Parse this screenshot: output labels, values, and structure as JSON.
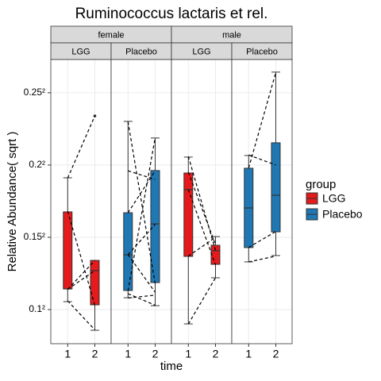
{
  "chart_data": {
    "type": "box",
    "title": "Ruminococcus lactaris et rel.",
    "x_label": "time",
    "y_label": "Relative Abundance( sqrt )",
    "legend_title": "group",
    "categories": [
      "1",
      "2"
    ],
    "series": [
      {
        "name": "LGG",
        "color": "#e41a1c"
      },
      {
        "name": "Placebo",
        "color": "#1f78b4"
      }
    ],
    "ylim": [
      0.0764,
      0.273
    ],
    "yticks": [
      {
        "value": 0.1,
        "label": "0.1²"
      },
      {
        "value": 0.15,
        "label": "0.15²"
      },
      {
        "value": 0.2,
        "label": "0.2²"
      },
      {
        "value": 0.25,
        "label": "0.25²"
      }
    ],
    "grid": true,
    "facets": [
      {
        "name": "female",
        "panels": [
          {
            "name": "LGG",
            "boxes": [
              {
                "whisker_low": 0.1055,
                "q1": 0.1143,
                "median": 0.1143,
                "q3": 0.1676,
                "whisker_high": 0.1912,
                "outliers": []
              },
              {
                "whisker_low": 0.0857,
                "q1": 0.1033,
                "median": 0.127,
                "q3": 0.134,
                "whisker_high": 0.134,
                "outliers": [
                  0.234
                ]
              }
            ],
            "pairs": [
              [
                0.191,
                0.234
              ],
              [
                0.168,
                0.103
              ],
              [
                0.114,
                0.134
              ],
              [
                0.106,
                0.086
              ],
              [
                0.114,
                0.127
              ]
            ]
          },
          {
            "name": "Placebo",
            "boxes": [
              {
                "whisker_low": 0.1082,
                "q1": 0.1132,
                "median": 0.1379,
                "q3": 0.167,
                "whisker_high": 0.2302,
                "outliers": []
              },
              {
                "whisker_low": 0.1027,
                "q1": 0.1187,
                "median": 0.1593,
                "q3": 0.1962,
                "whisker_high": 0.2187,
                "outliers": []
              }
            ],
            "pairs": [
              [
                0.23,
                0.118
              ],
              [
                0.196,
                0.19
              ],
              [
                0.167,
                0.196
              ],
              [
                0.138,
                0.159
              ],
              [
                0.138,
                0.112
              ],
              [
                0.113,
                0.219
              ],
              [
                0.111,
                0.103
              ],
              [
                0.108,
                0.11
              ]
            ]
          }
        ]
      },
      {
        "name": "male",
        "panels": [
          {
            "name": "LGG",
            "boxes": [
              {
                "whisker_low": 0.0901,
                "q1": 0.1368,
                "median": 0.183,
                "q3": 0.1945,
                "whisker_high": 0.2055,
                "outliers": []
              },
              {
                "whisker_low": 0.122,
                "q1": 0.1313,
                "median": 0.1407,
                "q3": 0.1445,
                "whisker_high": 0.1505,
                "outliers": []
              }
            ],
            "pairs": [
              [
                0.206,
                0.141
              ],
              [
                0.183,
                0.131
              ],
              [
                0.195,
                0.145
              ],
              [
                0.137,
                0.15
              ],
              [
                0.09,
                0.122
              ]
            ]
          },
          {
            "name": "Placebo",
            "boxes": [
              {
                "whisker_low": 0.133,
                "q1": 0.1429,
                "median": 0.1703,
                "q3": 0.1978,
                "whisker_high": 0.2066,
                "outliers": []
              },
              {
                "whisker_low": 0.1374,
                "q1": 0.1538,
                "median": 0.1791,
                "q3": 0.2154,
                "whisker_high": 0.2643,
                "outliers": []
              }
            ],
            "pairs": [
              [
                0.207,
                0.2
              ],
              [
                0.198,
                0.264
              ],
              [
                0.143,
                0.154
              ],
              [
                0.133,
                0.137
              ]
            ]
          }
        ]
      }
    ]
  }
}
